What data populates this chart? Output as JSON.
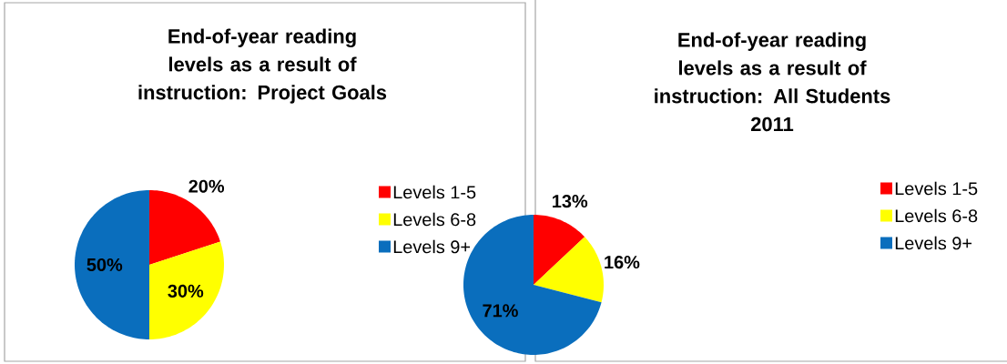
{
  "chart_data": [
    {
      "type": "pie",
      "title": "End-of-year reading levels as a result of instruction: Project Goals",
      "categories": [
        "Levels 1-5",
        "Levels 6-8",
        "Levels 9+"
      ],
      "values": [
        20,
        30,
        50
      ],
      "colors": [
        "#ff0000",
        "#ffff00",
        "#0a6ebd"
      ],
      "value_labels": [
        "20%",
        "30%",
        "50%"
      ],
      "legend": "right"
    },
    {
      "type": "pie",
      "title": "End-of-year reading levels as a result of instruction: All Students",
      "subtitle": "2011",
      "categories": [
        "Levels 1-5",
        "Levels 6-8",
        "Levels 9+"
      ],
      "values": [
        13,
        16,
        71
      ],
      "colors": [
        "#ff0000",
        "#ffff00",
        "#0a6ebd"
      ],
      "value_labels": [
        "13%",
        "16%",
        "71%"
      ],
      "legend": "right"
    }
  ]
}
